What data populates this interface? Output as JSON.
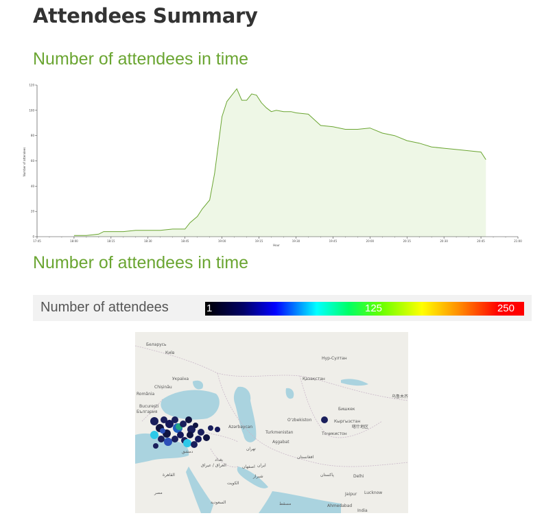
{
  "page": {
    "title": "Attendees Summary"
  },
  "section_1": {
    "title": "Number of attendees in time"
  },
  "section_2": {
    "title": "Number of attendees in time"
  },
  "chart_data": {
    "type": "area",
    "xlabel": "Hour",
    "ylabel": "Number of attendees",
    "x_ticks": [
      "17:45",
      "18:00",
      "18:15",
      "18:30",
      "18:45",
      "19:00",
      "19:15",
      "19:30",
      "19:45",
      "20:00",
      "20:15",
      "20:30",
      "20:45",
      "21:00"
    ],
    "y_ticks": [
      0,
      20,
      40,
      60,
      80,
      100,
      120
    ],
    "xlim": [
      "17:45",
      "21:00"
    ],
    "ylim": [
      0,
      120
    ],
    "grid": false,
    "colors": {
      "line": "#6aa531",
      "fill": "#eef7e6"
    },
    "series": [
      {
        "x": [
          "18:00",
          "18:05",
          "18:10",
          "18:12",
          "18:15",
          "18:20",
          "18:25",
          "18:28",
          "18:35",
          "18:40",
          "18:45",
          "18:47",
          "18:50",
          "18:52",
          "18:55",
          "18:57",
          "19:00",
          "19:02",
          "19:04",
          "19:06",
          "19:08",
          "19:10",
          "19:12",
          "19:14",
          "19:16",
          "19:18",
          "19:20",
          "19:22",
          "19:25",
          "19:28",
          "19:30",
          "19:35",
          "19:40",
          "19:45",
          "19:50",
          "19:55",
          "20:00",
          "20:05",
          "20:10",
          "20:15",
          "20:20",
          "20:25",
          "20:30",
          "20:35",
          "20:40",
          "20:45",
          "20:47"
        ],
        "values": [
          1,
          1,
          2,
          4,
          4,
          4,
          5,
          5,
          5,
          6,
          6,
          11,
          16,
          22,
          29,
          50,
          95,
          107,
          112,
          117,
          108,
          108,
          113,
          112,
          106,
          102,
          99,
          100,
          99,
          99,
          98,
          97,
          88,
          87,
          85,
          85,
          86,
          82,
          80,
          76,
          74,
          71,
          70,
          69,
          68,
          67,
          61
        ]
      }
    ]
  },
  "legend": {
    "label": "Number of attendees",
    "min": "1",
    "mid": "125",
    "max": "250"
  },
  "map": {
    "labels": {
      "belarus": "Беларусь",
      "kyiv": "Київ",
      "ukraine": "Україна",
      "chisinau": "Chișinău",
      "romania": "România",
      "bucuresti": "București",
      "bulgaria": "България",
      "nur_sultan": "Нур-Султан",
      "kazakhstan": "Қазақстан",
      "urumqi": "乌鲁木齐市",
      "bishkek": "Бишкек",
      "kyrgyzstan": "Кыргызстан",
      "kashgar": "喀什地区",
      "tajikistan": "Тоҷикистон",
      "uzbekiston": "Oʻzbekiston",
      "turkmenistan": "Turkmenistan",
      "ashgabat": "Aşgabat",
      "azerbaijan": "Azərbaycan",
      "tehran": "تهران",
      "iran": "ایران",
      "iraq": "العراق / عيراق",
      "cairo": "القاهرة",
      "egypt": "مصر",
      "saudi": "السعودية",
      "kuwait": "الكويت",
      "afghanistan": "افغانستان",
      "pakistan": "پاکستان",
      "delhi": "Delhi",
      "jaipur": "Jaipur",
      "lucknow": "Lucknow",
      "ahmedabad": "Ahmedabad",
      "india": "India",
      "isfahan": "اصفهان",
      "shiraz": "شیراز",
      "muscat": "مسقط",
      "damascus": "دمشق",
      "baghdad": "بغداد"
    }
  }
}
